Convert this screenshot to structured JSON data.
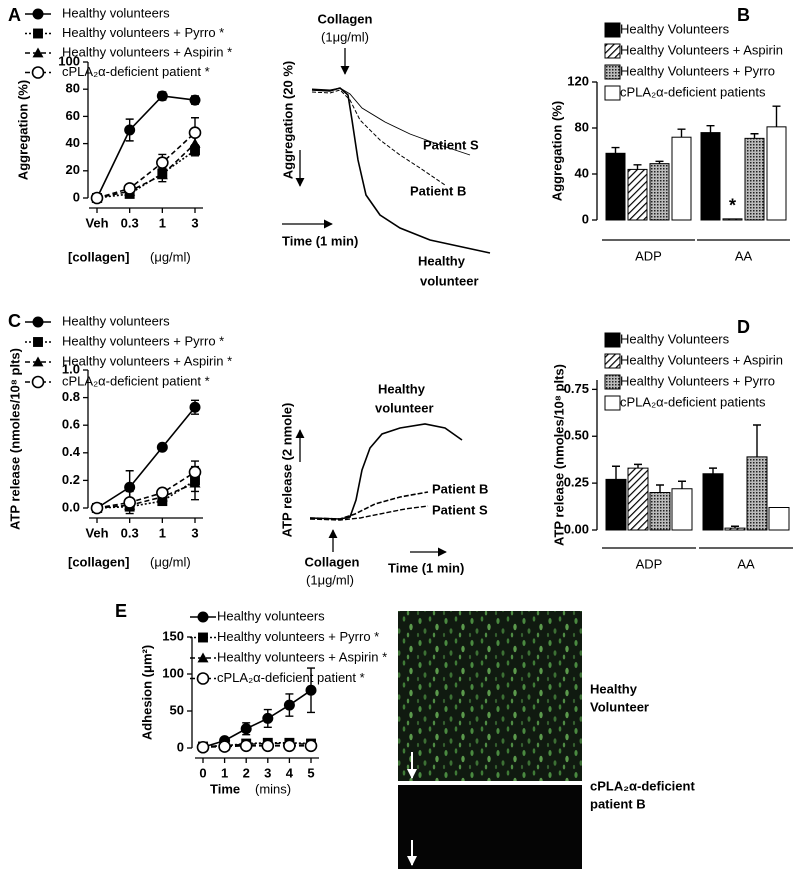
{
  "chart_data": [
    {
      "type": "line",
      "panel": "A",
      "ylabel": "Aggregation (%)",
      "xlabel": "[collagen]",
      "xlabel_unit": "(μg/ml)",
      "categories": [
        "Veh",
        "0.3",
        "1",
        "3"
      ],
      "ylim": [
        0,
        100
      ],
      "yticks": [
        0,
        20,
        40,
        60,
        80,
        100
      ],
      "series": [
        {
          "name": "Healthy volunteers",
          "color": "#000000",
          "marker": "circle",
          "dash": "solid",
          "values": [
            0,
            50,
            75,
            72
          ],
          "errors": [
            2,
            8,
            3,
            3
          ]
        },
        {
          "name": "Healthy volunteers + Pyrro *",
          "color": "#000000",
          "marker": "square",
          "dash": "dotted",
          "values": [
            0,
            3,
            18,
            35
          ],
          "errors": [
            1,
            1,
            3,
            4
          ]
        },
        {
          "name": "Healthy volunteers + Aspirin *",
          "color": "#000000",
          "marker": "triangle",
          "dash": "dashed",
          "values": [
            0,
            5,
            17,
            40
          ],
          "errors": [
            1,
            1,
            5,
            6
          ]
        },
        {
          "name": "cPLA₂α-deficient patient *",
          "color": "#000000",
          "marker": "open-circle",
          "dash": "dashed",
          "values": [
            0,
            7,
            26,
            48
          ],
          "errors": [
            1,
            2,
            6,
            11
          ]
        }
      ]
    },
    {
      "type": "bar",
      "panel": "B",
      "ylabel": "Aggregation (%)",
      "categories": [
        "ADP",
        "AA"
      ],
      "ylim": [
        0,
        120
      ],
      "yticks": [
        0,
        40,
        80,
        120
      ],
      "annotation": "*",
      "series": [
        {
          "name": "Healthy Volunteers",
          "color": "#000000",
          "pattern": "solid",
          "values": [
            58,
            76
          ],
          "errors": [
            5,
            6
          ]
        },
        {
          "name": "Healthy Volunteers + Aspirin",
          "color": "#000000",
          "pattern": "hatch",
          "values": [
            44,
            1
          ],
          "errors": [
            4,
            0
          ]
        },
        {
          "name": "Healthy Volunteers + Pyrro",
          "color": "#000000",
          "pattern": "dots",
          "values": [
            49,
            71
          ],
          "errors": [
            2,
            4
          ]
        },
        {
          "name": "cPLA₂α-deficient patients",
          "color": "#ffffff",
          "pattern": "solid",
          "values": [
            72,
            81
          ],
          "errors": [
            7,
            18
          ]
        }
      ]
    },
    {
      "type": "line",
      "panel": "C",
      "ylabel": "ATP release (nmoles/10⁸ plts)",
      "xlabel": "[collagen]",
      "xlabel_unit": "(μg/ml)",
      "categories": [
        "Veh",
        "0.3",
        "1",
        "3"
      ],
      "ylim": [
        0,
        1.0
      ],
      "yticks": [
        {
          "value": 0,
          "label": "0.0"
        },
        0.2,
        0.4,
        0.6,
        0.8,
        {
          "value": 1.0,
          "label": "1.0"
        }
      ],
      "series": [
        {
          "name": "Healthy volunteers",
          "color": "#000000",
          "marker": "circle",
          "dash": "solid",
          "values": [
            0,
            0.15,
            0.44,
            0.73
          ],
          "errors": [
            0.02,
            0.12,
            0.02,
            0.05
          ]
        },
        {
          "name": "Healthy volunteers + Pyrro *",
          "color": "#000000",
          "marker": "square",
          "dash": "dotted",
          "values": [
            0,
            0.01,
            0.05,
            0.2
          ],
          "errors": [
            0.01,
            0.01,
            0.02,
            0.08
          ]
        },
        {
          "name": "Healthy volunteers + Aspirin *",
          "color": "#000000",
          "marker": "triangle",
          "dash": "dashed",
          "values": [
            0,
            0.02,
            0.08,
            0.18
          ],
          "errors": [
            0.01,
            0.02,
            0.03,
            0.12
          ]
        },
        {
          "name": "cPLA₂α-deficient patient *",
          "color": "#000000",
          "marker": "open-circle",
          "dash": "dashed",
          "values": [
            0,
            0.04,
            0.11,
            0.26
          ],
          "errors": [
            0.02,
            0.08,
            0.02,
            0.08
          ]
        }
      ]
    },
    {
      "type": "bar",
      "panel": "D",
      "ylabel": "ATP release (nmoles/10⁸ plts)",
      "categories": [
        "ADP",
        "AA"
      ],
      "ylim": [
        0,
        0.8
      ],
      "yticks": [
        {
          "value": 0,
          "label": "0.00"
        },
        0.25,
        {
          "value": 0.5,
          "label": "0.50"
        },
        0.75
      ],
      "series": [
        {
          "name": "Healthy Volunteers",
          "color": "#000000",
          "pattern": "solid",
          "values": [
            0.27,
            0.3
          ],
          "errors": [
            0.07,
            0.03
          ]
        },
        {
          "name": "Healthy Volunteers + Aspirin",
          "color": "#000000",
          "pattern": "hatch",
          "values": [
            0.33,
            0.01
          ],
          "errors": [
            0.02,
            0.01
          ]
        },
        {
          "name": "Healthy Volunteers + Pyrro",
          "color": "#000000",
          "pattern": "dots",
          "values": [
            0.2,
            0.39
          ],
          "errors": [
            0.04,
            0.17
          ]
        },
        {
          "name": "cPLA₂α-deficient patients",
          "color": "#ffffff",
          "pattern": "solid",
          "values": [
            0.22,
            0.12
          ],
          "errors": [
            0.04,
            0
          ]
        }
      ]
    },
    {
      "type": "line",
      "panel": "E",
      "ylabel": "Adhesion (μm²)",
      "xlabel": "Time",
      "xlabel_unit": "(mins)",
      "x": [
        0,
        1,
        2,
        3,
        4,
        5
      ],
      "xlim": [
        0,
        5
      ],
      "xticks": [
        0,
        1,
        2,
        3,
        4,
        5
      ],
      "ylim": [
        0,
        150
      ],
      "yticks": [
        0,
        50,
        100,
        150
      ],
      "series": [
        {
          "name": "Healthy volunteers",
          "color": "#000000",
          "marker": "circle",
          "dash": "solid",
          "values": [
            1,
            10,
            26,
            40,
            58,
            78
          ],
          "errors": [
            1,
            2,
            8,
            12,
            15,
            30
          ]
        },
        {
          "name": "Healthy volunteers + Pyrro *",
          "color": "#000000",
          "marker": "square",
          "dash": "dotted",
          "values": [
            2,
            3,
            6,
            7,
            7,
            6
          ],
          "errors": [
            1,
            1,
            2,
            2,
            2,
            2
          ]
        },
        {
          "name": "Healthy volunteers + Aspirin *",
          "color": "#000000",
          "marker": "triangle",
          "dash": "dashed",
          "values": [
            2,
            3,
            5,
            6,
            6,
            5
          ],
          "errors": [
            1,
            1,
            2,
            2,
            2,
            2
          ]
        },
        {
          "name": "cPLA₂α-deficient patient *",
          "color": "#000000",
          "marker": "open-circle",
          "dash": "dashed",
          "values": [
            1,
            2,
            3,
            3,
            3,
            3
          ],
          "errors": [
            1,
            1,
            1,
            1,
            1,
            1
          ]
        }
      ]
    }
  ],
  "aggregation_trace": {
    "agonist": "Collagen",
    "dose": "(1μg/ml)",
    "ylabel": "Aggregation (20 %)",
    "patient_s": "Patient S",
    "patient_b": "Patient B",
    "time": "Time (1 min)",
    "healthy": "Healthy",
    "healthy_2": "volunteer"
  },
  "atp_trace": {
    "healthy": "Healthy",
    "healthy_2": "volunteer",
    "ylabel": "ATP release (2 nmole)",
    "patient_b": "Patient B",
    "patient_s": "Patient S",
    "agonist": "Collagen",
    "dose": "(1μg/ml)",
    "time": "Time (1 min)"
  },
  "images": {
    "top_1": "Healthy",
    "top_2": "Volunteer",
    "bottom_1": "cPLA₂α-deficient",
    "bottom_2": "patient B"
  }
}
